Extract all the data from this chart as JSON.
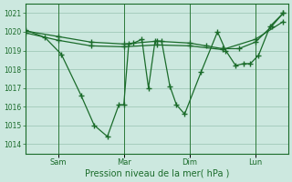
{
  "bg_color": "#cce8df",
  "grid_color": "#a0c8b8",
  "line_color": "#1a6b2a",
  "xlabel": "Pression niveau de la mer( hPa )",
  "ylim": [
    1013.5,
    1021.5
  ],
  "yticks": [
    1014,
    1015,
    1016,
    1017,
    1018,
    1019,
    1020,
    1021
  ],
  "xlim": [
    0,
    8.0
  ],
  "xtick_positions": [
    1,
    3,
    5,
    7
  ],
  "xtick_labels": [
    "Sam",
    "Mar",
    "Dim",
    "Lun"
  ],
  "series1_x": [
    0.0,
    0.6,
    1.1,
    1.7,
    2.1,
    2.5,
    2.85,
    3.0,
    3.15,
    3.3,
    3.55,
    3.75,
    3.95,
    4.15,
    4.4,
    4.6,
    4.85,
    5.35,
    5.85,
    6.1,
    6.4,
    6.65,
    6.85,
    7.1,
    7.45,
    7.85
  ],
  "series1_y": [
    1020.1,
    1019.7,
    1018.8,
    1016.6,
    1015.0,
    1014.4,
    1016.1,
    1016.1,
    1019.35,
    1019.4,
    1019.6,
    1017.0,
    1019.5,
    1019.5,
    1017.1,
    1016.1,
    1015.6,
    1017.85,
    1020.0,
    1019.0,
    1018.2,
    1018.3,
    1018.3,
    1018.75,
    1020.3,
    1021.0
  ],
  "series2_x": [
    0.0,
    1.0,
    2.0,
    3.0,
    4.0,
    5.0,
    5.5,
    6.0,
    6.5,
    7.0,
    7.5,
    7.85
  ],
  "series2_y": [
    1020.05,
    1019.75,
    1019.45,
    1019.35,
    1019.5,
    1019.4,
    1019.25,
    1019.1,
    1019.1,
    1019.45,
    1020.3,
    1021.0
  ],
  "series3_x": [
    0.0,
    1.0,
    2.0,
    3.0,
    4.0,
    5.0,
    6.0,
    7.0,
    7.85
  ],
  "series3_y": [
    1019.95,
    1019.55,
    1019.25,
    1019.2,
    1019.3,
    1019.25,
    1019.05,
    1019.6,
    1020.55
  ],
  "vline_positions": [
    1,
    3,
    5,
    7
  ],
  "vline_color": "#2d7a3a"
}
